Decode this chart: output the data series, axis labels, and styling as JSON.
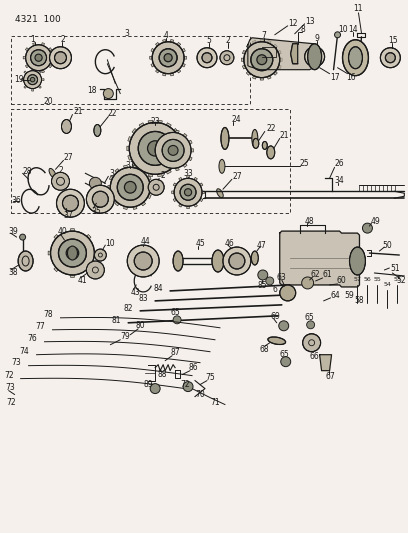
{
  "background_color": "#f5f0eb",
  "line_color": "#1a1a1a",
  "dark_color": "#2a2a2a",
  "fig_width": 4.08,
  "fig_height": 5.33,
  "dpi": 100,
  "part_num": "4321  100"
}
